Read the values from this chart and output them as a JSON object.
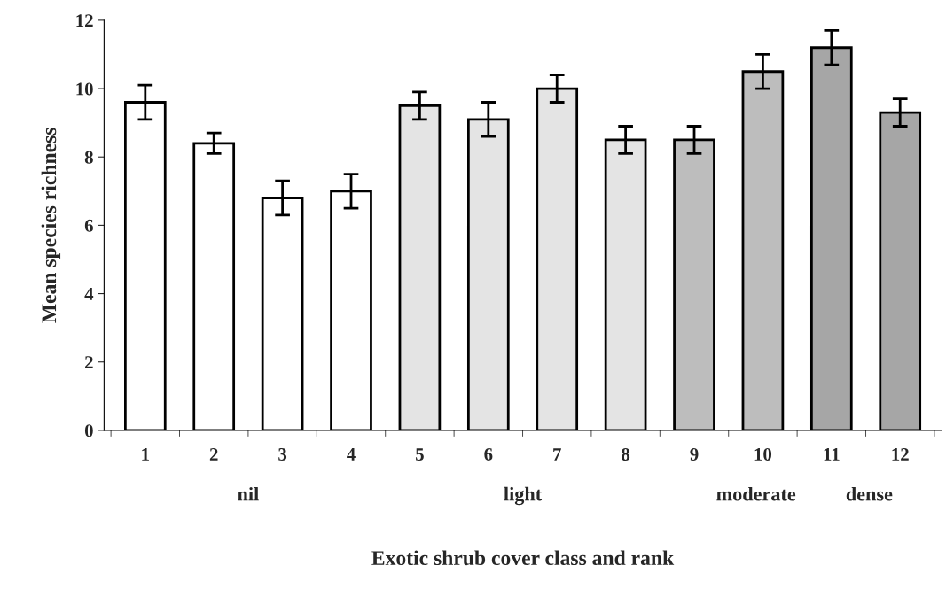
{
  "chart_data": {
    "type": "bar",
    "xlabel": "Exotic shrub cover class and rank",
    "ylabel": "Mean species richness",
    "categories": [
      "1",
      "2",
      "3",
      "4",
      "5",
      "6",
      "7",
      "8",
      "9",
      "10",
      "11",
      "12"
    ],
    "values": [
      9.6,
      8.4,
      6.8,
      7.0,
      9.5,
      9.1,
      10.0,
      8.5,
      8.5,
      10.5,
      11.2,
      9.3
    ],
    "errors": [
      0.5,
      0.3,
      0.5,
      0.5,
      0.4,
      0.5,
      0.4,
      0.4,
      0.4,
      0.5,
      0.5,
      0.4
    ],
    "colors": [
      "#ffffff",
      "#ffffff",
      "#ffffff",
      "#ffffff",
      "#e4e4e4",
      "#e4e4e4",
      "#e4e4e4",
      "#e4e4e4",
      "#bdbdbd",
      "#bdbdbd",
      "#a6a6a6",
      "#a6a6a6"
    ],
    "ylim": [
      0,
      12
    ],
    "yticks": [
      0,
      2,
      4,
      6,
      8,
      10,
      12
    ],
    "annotations": [
      "nil",
      "light",
      "moderate",
      "dense"
    ],
    "grid": false,
    "legend": false
  }
}
